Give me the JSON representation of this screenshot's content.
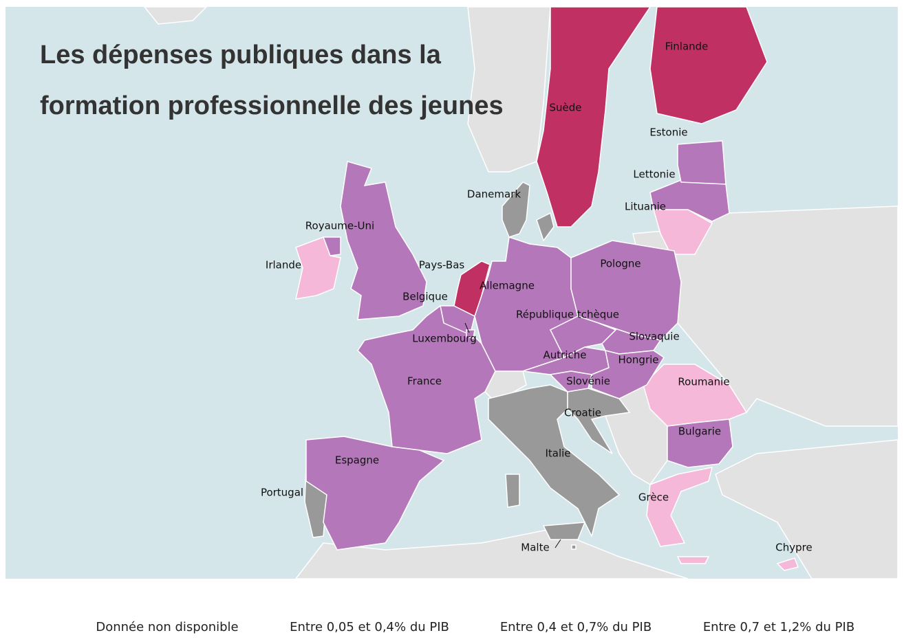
{
  "title": [
    "Les dépenses publiques dans la",
    "formation professionnelle des jeunes"
  ],
  "legend": [
    {
      "label": "Donnée non disponible",
      "color": "#999999",
      "countries": [
        "Danemark",
        "Italie",
        "Croatie",
        "Portugal",
        "Malte"
      ]
    },
    {
      "label": "Entre 0,05 et 0,4% du PIB",
      "color": "#f6b8d8",
      "countries": [
        "Irlande",
        "Roumanie",
        "Grèce",
        "Chypre",
        "Lituanie"
      ]
    },
    {
      "label": "Entre 0,4 et 0,7% du PIB",
      "color": "#b477b9",
      "countries": [
        "Royaume-Uni",
        "Belgique",
        "France",
        "Espagne",
        "Allemagne",
        "Pologne",
        "République tchèque",
        "Autriche",
        "Slovaquie",
        "Hongrie",
        "Slovénie",
        "Bulgarie",
        "Lettonie",
        "Estonie",
        "Luxembourg"
      ]
    },
    {
      "label": "Entre 0,7 et 1,2% du PIB",
      "color": "#c03063",
      "countries": [
        "Suède",
        "Finlande",
        "Pays-Bas"
      ]
    }
  ]
}
